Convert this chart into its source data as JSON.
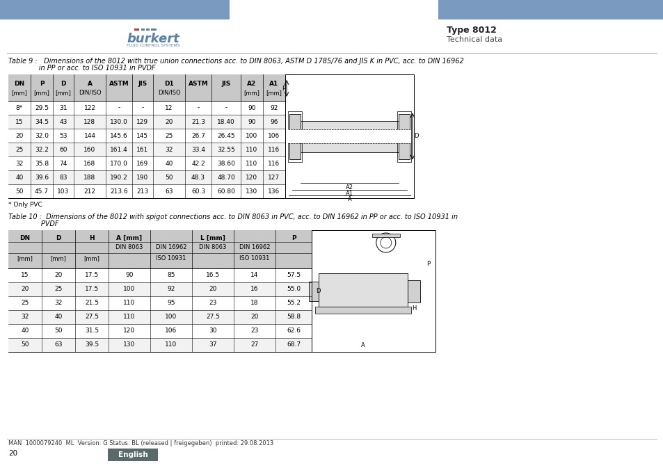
{
  "header_bg_color": "#7a9bbf",
  "page_bg": "#ffffff",
  "border_color": "#000000",
  "title_bold": "Type 8012",
  "title_sub": "Technical data",
  "table9_caption_line1": "Table 9 :   Dimensions of the 8012 with true union connections acc. to DIN 8063, ASTM D 1785/76 and JIS K in PVC, acc. to DIN 16962",
  "table9_caption_line2": "              in PP or acc. to ISO 10931 in PVDF",
  "table9_footnote": "* Only PVC",
  "table9_data": [
    [
      "8*",
      "29.5",
      "31",
      "122",
      "-",
      "-",
      "12",
      "-",
      "-",
      "90",
      "92"
    ],
    [
      "15",
      "34.5",
      "43",
      "128",
      "130.0",
      "129",
      "20",
      "21.3",
      "18.40",
      "90",
      "96"
    ],
    [
      "20",
      "32.0",
      "53",
      "144",
      "145.6",
      "145",
      "25",
      "26.7",
      "26.45",
      "100",
      "106"
    ],
    [
      "25",
      "32.2",
      "60",
      "160",
      "161.4",
      "161",
      "32",
      "33.4",
      "32.55",
      "110",
      "116"
    ],
    [
      "32",
      "35.8",
      "74",
      "168",
      "170.0",
      "169",
      "40",
      "42.2",
      "38.60",
      "110",
      "116"
    ],
    [
      "40",
      "39.6",
      "83",
      "188",
      "190.2",
      "190",
      "50",
      "48.3",
      "48.70",
      "120",
      "127"
    ],
    [
      "50",
      "45.7",
      "103",
      "212",
      "213.6",
      "213",
      "63",
      "60.3",
      "60.80",
      "130",
      "136"
    ]
  ],
  "table10_caption_line1": "Table 10 :  Dimensions of the 8012 with spigot connections acc. to DIN 8063 in PVC, acc. to DIN 16962 in PP or acc. to ISO 10931 in",
  "table10_caption_line2": "               PVDF",
  "table10_data": [
    [
      "15",
      "20",
      "17.5",
      "90",
      "85",
      "16.5",
      "14",
      "57.5"
    ],
    [
      "20",
      "25",
      "17.5",
      "100",
      "92",
      "20",
      "16",
      "55.0"
    ],
    [
      "25",
      "32",
      "21.5",
      "110",
      "95",
      "23",
      "18",
      "55.2"
    ],
    [
      "32",
      "40",
      "27.5",
      "110",
      "100",
      "27.5",
      "20",
      "58.8"
    ],
    [
      "40",
      "50",
      "31.5",
      "120",
      "106",
      "30",
      "23",
      "62.6"
    ],
    [
      "50",
      "63",
      "39.5",
      "130",
      "110",
      "37",
      "27",
      "68.7"
    ]
  ],
  "footer_text": "MAN  1000079240  ML  Version: G Status: BL (released | freigegeben)  printed: 29.08.2013",
  "page_num": "20",
  "lang_label": "English",
  "lang_bg": "#5a6a6a",
  "hdr_gray": "#c8c8c8"
}
